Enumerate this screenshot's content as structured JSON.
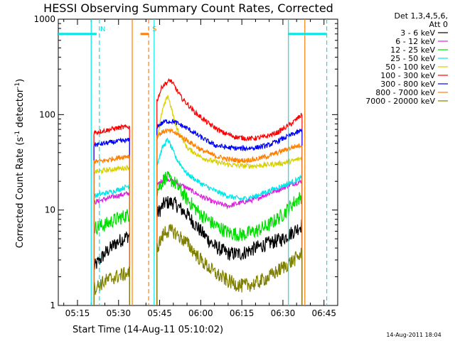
{
  "stamp": "14-Aug-2011 18:04",
  "chart_data": {
    "type": "line",
    "title": "HESSI Observing Summary Count Rates, Corrected",
    "xlabel": "Start Time (14-Aug-11 05:10:02)",
    "ylabel_main": "Corrected Count Rate (s",
    "ylabel_sup1": "-1",
    "ylabel_mid": " detector",
    "ylabel_sup2": "-1",
    "ylabel_end": ")",
    "y_scale": "log",
    "ylim": [
      1,
      1000
    ],
    "xlim_minutes": [
      "05:08",
      "06:50"
    ],
    "x_ticks": [
      "05:15",
      "05:30",
      "05:45",
      "06:00",
      "06:15",
      "06:30",
      "06:45"
    ],
    "y_ticks": [
      "1",
      "10",
      "100",
      "1000"
    ],
    "legend_header": [
      "Det 1,3,4,5,6,",
      "Att 0"
    ],
    "legend": [
      {
        "label": "3 - 6 keV",
        "color": "#000000"
      },
      {
        "label": "6 - 12 keV",
        "color": "#e020e0"
      },
      {
        "label": "12 - 25 keV",
        "color": "#00e000"
      },
      {
        "label": "25 - 50 keV",
        "color": "#00e8e8"
      },
      {
        "label": "50 - 100 keV",
        "color": "#d8d000"
      },
      {
        "label": "100 - 300 keV",
        "color": "#ff0000"
      },
      {
        "label": "300 - 800 keV",
        "color": "#0000ff"
      },
      {
        "label": "800 - 7000 keV",
        "color": "#ff8000"
      },
      {
        "label": "7000 - 20000 keV",
        "color": "#808000"
      }
    ],
    "flags": [
      {
        "label": "N",
        "color": "#00e8e8",
        "start": "05:08",
        "end": "05:22",
        "value": 700
      },
      {
        "label": "S",
        "color": "#ff8000",
        "start": "05:38",
        "end": "05:41",
        "value": 700
      },
      {
        "label": "",
        "color": "#00e8e8",
        "start": "06:32",
        "end": "06:46",
        "value": 700
      }
    ],
    "markers_dashed": [
      {
        "time": "05:23",
        "color": "#00e8e8"
      },
      {
        "time": "05:41",
        "color": "#ff8000"
      },
      {
        "time": "06:46",
        "color": "#00e8e8"
      }
    ],
    "markers_solid": [
      {
        "time": "05:20",
        "color": "#00e8e8"
      },
      {
        "time": "05:35",
        "color": "#ff8000"
      },
      {
        "time": "05:43",
        "color": "#00e8e8"
      },
      {
        "time": "06:32",
        "color": "#00e8e8"
      },
      {
        "time": "06:38",
        "color": "#ff8000"
      }
    ],
    "segments": [
      {
        "start": "05:21",
        "end": "05:34"
      },
      {
        "start": "05:44",
        "end": "06:37"
      }
    ],
    "series": [
      {
        "name": "3 - 6 keV",
        "color": "#000000",
        "times": [
          "05:21",
          "05:25",
          "05:29",
          "05:34",
          "05:44",
          "05:47",
          "05:50",
          "05:55",
          "06:00",
          "06:05",
          "06:10",
          "06:15",
          "06:20",
          "06:25",
          "06:30",
          "06:34",
          "06:37"
        ],
        "values": [
          2.5,
          3.5,
          4.5,
          5.5,
          9,
          12,
          12,
          9,
          6,
          4.2,
          3.5,
          3.5,
          4,
          4.5,
          5,
          6,
          7
        ]
      },
      {
        "name": "6 - 12 keV",
        "color": "#e020e0",
        "times": [
          "05:21",
          "05:25",
          "05:29",
          "05:34",
          "05:44",
          "05:47",
          "05:50",
          "05:55",
          "06:00",
          "06:05",
          "06:10",
          "06:15",
          "06:20",
          "06:25",
          "06:30",
          "06:34",
          "06:37"
        ],
        "values": [
          12,
          13,
          14,
          15,
          18,
          22,
          20,
          17,
          14,
          12,
          11,
          12,
          13,
          15,
          17,
          19,
          20
        ]
      },
      {
        "name": "12 - 25 keV",
        "color": "#00e000",
        "times": [
          "05:21",
          "05:25",
          "05:29",
          "05:34",
          "05:44",
          "05:47",
          "05:50",
          "05:55",
          "06:00",
          "06:05",
          "06:10",
          "06:15",
          "06:20",
          "06:25",
          "06:30",
          "06:34",
          "06:37"
        ],
        "values": [
          6.5,
          7,
          8,
          9,
          16,
          22,
          20,
          13,
          9,
          7,
          5.8,
          5.5,
          6,
          7,
          9,
          12,
          14
        ]
      },
      {
        "name": "25 - 50 keV",
        "color": "#00e8e8",
        "times": [
          "05:21",
          "05:25",
          "05:29",
          "05:34",
          "05:44",
          "05:46",
          "05:48",
          "05:51",
          "05:55",
          "06:00",
          "06:05",
          "06:10",
          "06:15",
          "06:20",
          "06:25",
          "06:30",
          "06:34",
          "06:37"
        ],
        "values": [
          14,
          15,
          16,
          18,
          30,
          45,
          55,
          35,
          24,
          19,
          16,
          14,
          13,
          14,
          16,
          18,
          20,
          22
        ]
      },
      {
        "name": "50 - 100 keV",
        "color": "#d8d000",
        "times": [
          "05:21",
          "05:25",
          "05:29",
          "05:34",
          "05:44",
          "05:46",
          "05:48",
          "05:51",
          "05:55",
          "06:00",
          "06:05",
          "06:10",
          "06:15",
          "06:20",
          "06:25",
          "06:30",
          "06:34",
          "06:37"
        ],
        "values": [
          25,
          26,
          27,
          28,
          55,
          110,
          160,
          75,
          45,
          36,
          32,
          30,
          29,
          29,
          30,
          31,
          33,
          35
        ]
      },
      {
        "name": "100 - 300 keV",
        "color": "#ff0000",
        "times": [
          "05:21",
          "05:25",
          "05:29",
          "05:34",
          "05:44",
          "05:46",
          "05:49",
          "05:53",
          "05:58",
          "06:03",
          "06:08",
          "06:13",
          "06:18",
          "06:23",
          "06:28",
          "06:33",
          "06:37"
        ],
        "values": [
          65,
          68,
          72,
          75,
          140,
          200,
          230,
          150,
          105,
          80,
          65,
          58,
          56,
          58,
          65,
          80,
          100
        ]
      },
      {
        "name": "300 - 800 keV",
        "color": "#0000ff",
        "times": [
          "05:21",
          "05:25",
          "05:29",
          "05:34",
          "05:44",
          "05:47",
          "05:50",
          "05:55",
          "06:00",
          "06:05",
          "06:10",
          "06:15",
          "06:20",
          "06:25",
          "06:30",
          "06:34",
          "06:37"
        ],
        "values": [
          48,
          50,
          52,
          54,
          75,
          85,
          85,
          72,
          58,
          48,
          45,
          44,
          45,
          48,
          56,
          63,
          68
        ]
      },
      {
        "name": "800 - 7000 keV",
        "color": "#ff8000",
        "times": [
          "05:21",
          "05:25",
          "05:29",
          "05:34",
          "05:44",
          "05:47",
          "05:50",
          "05:55",
          "06:00",
          "06:05",
          "06:10",
          "06:15",
          "06:20",
          "06:25",
          "06:30",
          "06:34",
          "06:37"
        ],
        "values": [
          32,
          33,
          35,
          37,
          60,
          68,
          66,
          54,
          43,
          37,
          34,
          33,
          34,
          37,
          42,
          46,
          48
        ]
      },
      {
        "name": "7000 - 20000 keV",
        "color": "#808000",
        "times": [
          "05:21",
          "05:25",
          "05:29",
          "05:34",
          "05:44",
          "05:47",
          "05:50",
          "05:55",
          "06:00",
          "06:05",
          "06:10",
          "06:15",
          "06:20",
          "06:25",
          "06:30",
          "06:34",
          "06:37"
        ],
        "values": [
          1.5,
          1.8,
          2,
          2.2,
          4,
          6,
          6,
          4.5,
          3,
          2.2,
          1.8,
          1.6,
          1.7,
          2,
          2.5,
          3,
          3.5
        ]
      }
    ]
  }
}
